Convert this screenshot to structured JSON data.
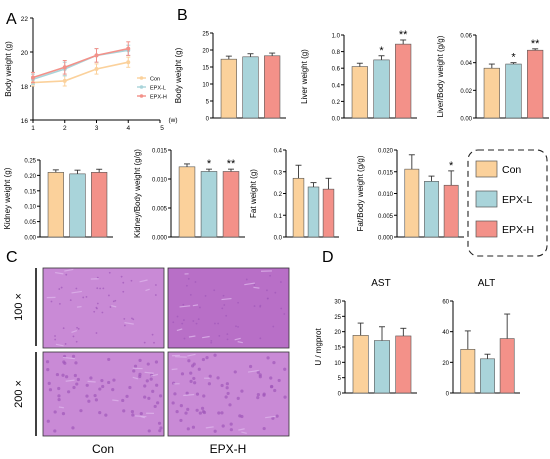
{
  "panel_labels": {
    "a": "A",
    "b": "B",
    "c": "C",
    "d": "D"
  },
  "colors": {
    "con": "#FBD19B",
    "epxl": "#A9D4DA",
    "epxh": "#F39189",
    "frame": "#111111"
  },
  "legend": {
    "con": "Con",
    "epxl": "EPX-L",
    "epxh": "EPX-H"
  },
  "histology": {
    "col_labels": [
      "Con",
      "EPX-H"
    ],
    "row_labels": [
      "100 ×",
      "200 ×"
    ],
    "colors": {
      "tissue": "#C98AD6",
      "stain_light": "#DDB3EA",
      "stain_dark": "#A057B9",
      "top_bg": "#B86FC7"
    }
  },
  "chart_data": [
    {
      "type": "line",
      "panel": "A",
      "x": [
        1,
        2,
        3,
        4
      ],
      "xlabel": "(w)",
      "ylabel": "Body weight (g)",
      "ylim": [
        16,
        22
      ],
      "yticks": [
        16,
        18,
        20,
        22
      ],
      "xticks": [
        1,
        2,
        3,
        4,
        5
      ],
      "series": [
        {
          "name": "Con",
          "values": [
            18.2,
            18.3,
            19.0,
            19.4
          ],
          "err": [
            0.2,
            0.3,
            0.3,
            0.3
          ]
        },
        {
          "name": "EPX-L",
          "values": [
            18.4,
            19.0,
            19.8,
            20.1
          ],
          "err": [
            0.3,
            0.4,
            0.4,
            0.3
          ]
        },
        {
          "name": "EPX-H",
          "values": [
            18.5,
            19.1,
            19.8,
            20.2
          ],
          "err": [
            0.3,
            0.4,
            0.4,
            0.4
          ]
        }
      ],
      "legend_position": "right"
    },
    {
      "type": "bar",
      "panel": "B",
      "ylabel": "Body weight (g)",
      "ylim": [
        0,
        25
      ],
      "yticks": [
        "0",
        "5",
        "10",
        "15",
        "20",
        "25"
      ],
      "categories": [
        "Con",
        "EPX-L",
        "EPX-H"
      ],
      "values": [
        17.3,
        18.0,
        18.3
      ],
      "err": [
        0.9,
        0.9,
        0.8
      ],
      "sig": [
        "",
        "",
        ""
      ]
    },
    {
      "type": "bar",
      "panel": "B",
      "ylabel": "Liver weight (g)",
      "ylim": [
        0,
        1.0
      ],
      "yticks": [
        "0.0",
        "0.2",
        "0.4",
        "0.6",
        "0.8",
        "1.0"
      ],
      "categories": [
        "Con",
        "EPX-L",
        "EPX-H"
      ],
      "values": [
        0.62,
        0.7,
        0.89
      ],
      "err": [
        0.04,
        0.05,
        0.05
      ],
      "sig": [
        "",
        "*",
        "**"
      ]
    },
    {
      "type": "bar",
      "panel": "B",
      "ylabel": "Liver/Body weight (g/g)",
      "ylim": [
        0,
        0.06
      ],
      "yticks": [
        "0.00",
        "0.02",
        "0.04",
        "0.06"
      ],
      "categories": [
        "Con",
        "EPX-L",
        "EPX-H"
      ],
      "values": [
        0.036,
        0.039,
        0.049
      ],
      "err": [
        0.003,
        0.001,
        0.001
      ],
      "sig": [
        "",
        "*",
        "**"
      ]
    },
    {
      "type": "bar",
      "panel": "B",
      "ylabel": "Kidney weight (g)",
      "ylim": [
        0,
        0.25
      ],
      "yticks": [
        "0.00",
        "0.05",
        "0.10",
        "0.15",
        "0.20",
        "0.25"
      ],
      "categories": [
        "Con",
        "EPX-L",
        "EPX-H"
      ],
      "values": [
        0.21,
        0.205,
        0.21
      ],
      "err": [
        0.008,
        0.012,
        0.01
      ],
      "sig": [
        "",
        "",
        ""
      ]
    },
    {
      "type": "bar",
      "panel": "B",
      "ylabel": "Kidney/Body weight (g/g)",
      "ylim": [
        0,
        0.015
      ],
      "yticks": [
        "0.000",
        "0.005",
        "0.010",
        "0.015"
      ],
      "categories": [
        "Con",
        "EPX-L",
        "EPX-H"
      ],
      "values": [
        0.0121,
        0.0113,
        0.0113
      ],
      "err": [
        0.0005,
        0.0004,
        0.0004
      ],
      "sig": [
        "",
        "*",
        "**"
      ]
    },
    {
      "type": "bar",
      "panel": "B",
      "ylabel": "Fat weight (g)",
      "ylim": [
        0,
        0.4
      ],
      "yticks": [
        "0.0",
        "0.1",
        "0.2",
        "0.3",
        "0.4"
      ],
      "categories": [
        "Con",
        "EPX-L",
        "EPX-H"
      ],
      "values": [
        0.27,
        0.23,
        0.22
      ],
      "err": [
        0.06,
        0.02,
        0.05
      ],
      "sig": [
        "",
        "",
        ""
      ]
    },
    {
      "type": "bar",
      "panel": "B",
      "ylabel": "Fat/Body weight (g/g)",
      "ylim": [
        0,
        0.02
      ],
      "yticks": [
        "0.000",
        "0.005",
        "0.010",
        "0.015",
        "0.020"
      ],
      "categories": [
        "Con",
        "EPX-L",
        "EPX-H"
      ],
      "values": [
        0.0156,
        0.0128,
        0.0119
      ],
      "err": [
        0.0033,
        0.0012,
        0.0033
      ],
      "sig": [
        "",
        "",
        "*"
      ]
    },
    {
      "type": "bar",
      "panel": "D",
      "title": "AST",
      "ylabel": "U / mgprot",
      "ylim": [
        0,
        30
      ],
      "yticks": [
        "0",
        "5",
        "10",
        "15",
        "20",
        "25",
        "30"
      ],
      "categories": [
        "Con",
        "EPX-L",
        "EPX-H"
      ],
      "values": [
        18.8,
        17.1,
        18.6
      ],
      "err": [
        4.0,
        4.5,
        2.5
      ],
      "sig": [
        "",
        "",
        ""
      ]
    },
    {
      "type": "bar",
      "panel": "D",
      "title": "ALT",
      "ylabel": "",
      "ylim": [
        0,
        60
      ],
      "yticks": [
        "0",
        "20",
        "40",
        "60"
      ],
      "categories": [
        "Con",
        "EPX-L",
        "EPX-H"
      ],
      "values": [
        28.5,
        22.3,
        35.5
      ],
      "err": [
        12.0,
        3.0,
        16.0
      ],
      "sig": [
        "",
        "",
        ""
      ]
    }
  ]
}
